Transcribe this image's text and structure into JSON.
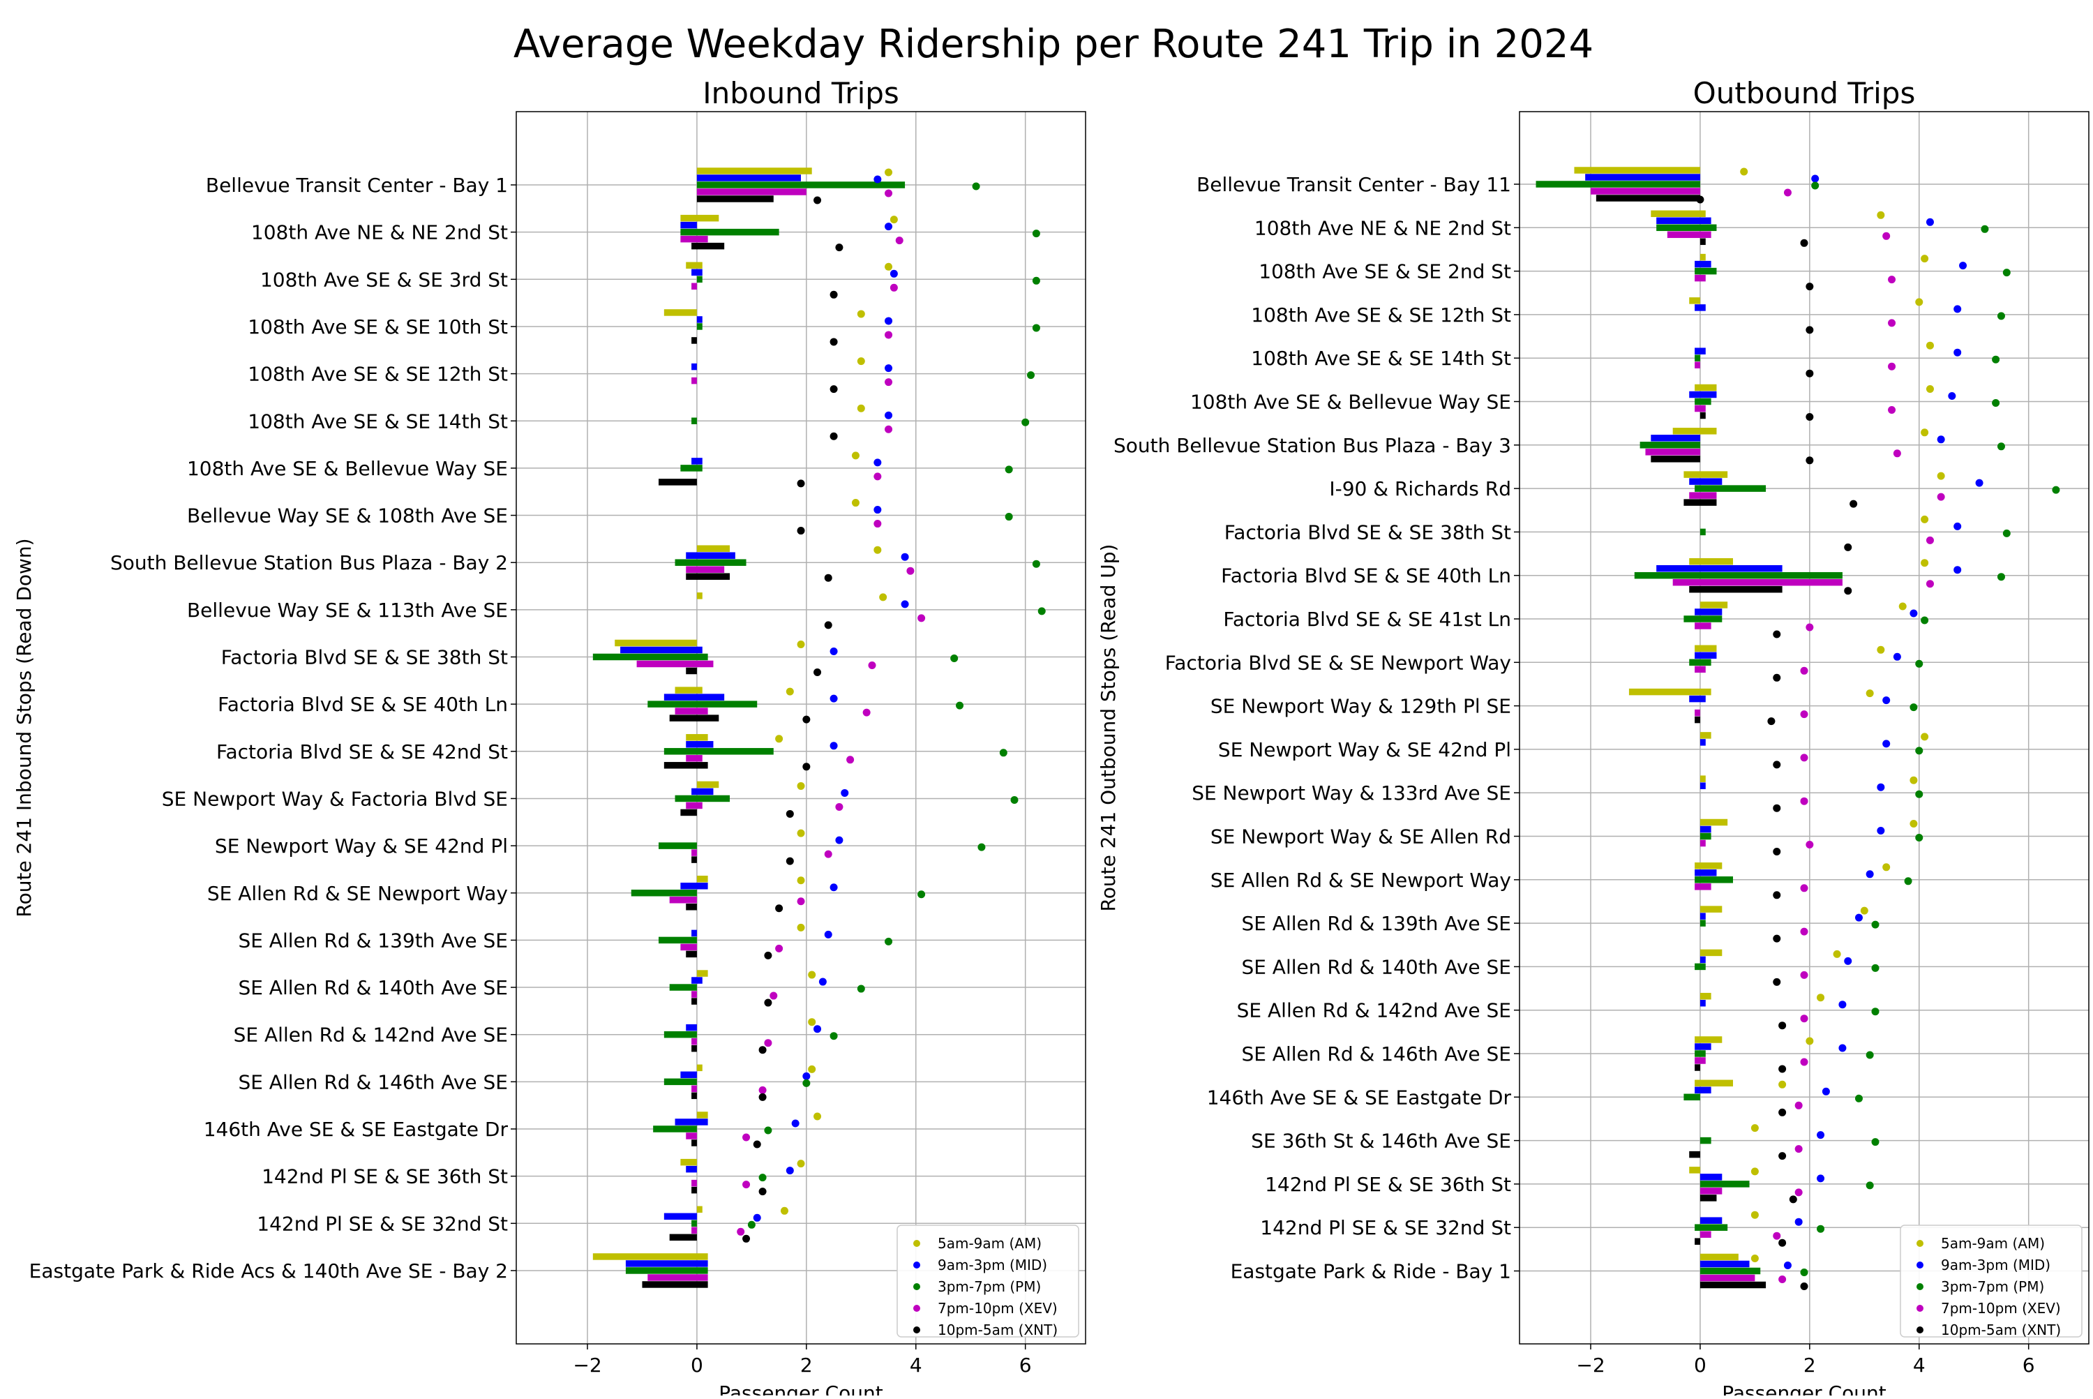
{
  "title": "Average Weekday Ridership per Route 241 Trip in 2024",
  "colors": {
    "AM": "#bfbf00",
    "MID": "#0000ff",
    "PM": "#008000",
    "XEV": "#bf00bf",
    "XNT": "#000000"
  },
  "chart_data": [
    {
      "type": "bar",
      "title": "Inbound Trips",
      "xlabel": "Passenger Count",
      "ylabel": "Route 241 Inbound Stops (Read Down)",
      "xlim": [
        -3.3,
        7.1
      ],
      "xticks": [
        -2,
        0,
        2,
        4,
        6
      ],
      "grid": true,
      "legend_position": "lower-right",
      "categories": [
        "Bellevue Transit Center - Bay 1",
        "108th Ave NE & NE 2nd St",
        "108th Ave SE & SE 3rd St",
        "108th Ave SE & SE 10th St",
        "108th Ave SE & SE 12th St",
        "108th Ave SE & SE 14th St",
        "108th Ave SE & Bellevue Way SE",
        "Bellevue Way SE & 108th Ave SE",
        "South Bellevue Station Bus Plaza - Bay 2",
        "Bellevue Way SE & 113th Ave SE",
        "Factoria Blvd SE & SE 38th St",
        "Factoria Blvd SE & SE 40th Ln",
        "Factoria Blvd SE & SE 42nd St",
        "SE Newport Way & Factoria Blvd SE",
        "SE Newport Way & SE 42nd Pl",
        "SE Allen Rd & SE Newport Way",
        "SE Allen Rd & 139th Ave SE",
        "SE Allen Rd & 140th Ave SE",
        "SE Allen Rd & 142nd Ave SE",
        "SE Allen Rd & 146th Ave SE",
        "146th Ave SE & SE Eastgate Dr",
        "142nd Pl SE & SE 36th St",
        "142nd Pl SE & SE 32nd St",
        "Eastgate Park & Ride Acs & 140th Ave SE - Bay 2"
      ],
      "series": [
        {
          "name": "5am-9am (AM)",
          "color": "#bfbf00",
          "bar_low": [
            0,
            -0.3,
            -0.2,
            -0.6,
            0,
            0,
            0,
            0,
            0,
            0,
            -1.5,
            -0.4,
            -0.2,
            0,
            0,
            0,
            0,
            0,
            0,
            0,
            0,
            -0.3,
            0,
            -1.9
          ],
          "bar_high": [
            2.1,
            0.4,
            0.1,
            0,
            0,
            0,
            0,
            0,
            0.6,
            0.1,
            0,
            0.1,
            0.2,
            0.4,
            0,
            0.2,
            0,
            0.2,
            0,
            0.1,
            0.2,
            0,
            0.1,
            0.2
          ],
          "dots": [
            3.5,
            3.6,
            3.5,
            3.0,
            3.0,
            3.0,
            2.9,
            2.9,
            3.3,
            3.4,
            1.9,
            1.7,
            1.5,
            1.9,
            1.9,
            1.9,
            1.9,
            2.1,
            2.1,
            2.1,
            2.2,
            1.9,
            1.6,
            null
          ]
        },
        {
          "name": "9am-3pm (MID)",
          "color": "#0000ff",
          "bar_low": [
            0,
            -0.3,
            -0.1,
            0,
            -0.1,
            0,
            -0.1,
            0,
            -0.2,
            0,
            -1.4,
            -0.6,
            -0.2,
            -0.1,
            0,
            -0.3,
            -0.1,
            -0.1,
            -0.2,
            -0.3,
            -0.4,
            -0.2,
            -0.6,
            -1.3
          ],
          "bar_high": [
            1.9,
            0,
            0.1,
            0.1,
            0,
            0,
            0.1,
            0,
            0.7,
            0,
            0.1,
            0.5,
            0.3,
            0.3,
            0,
            0.2,
            0,
            0.1,
            0,
            0,
            0.2,
            0,
            0,
            0.2
          ],
          "dots": [
            3.3,
            3.5,
            3.6,
            3.5,
            3.5,
            3.5,
            3.3,
            3.3,
            3.8,
            3.8,
            2.5,
            2.5,
            2.5,
            2.7,
            2.6,
            2.5,
            2.4,
            2.3,
            2.2,
            2.0,
            1.8,
            1.7,
            1.1,
            null
          ]
        },
        {
          "name": "3pm-7pm (PM)",
          "color": "#008000",
          "bar_low": [
            0,
            -0.3,
            0,
            0,
            0,
            -0.1,
            -0.3,
            0,
            -0.4,
            0,
            -1.9,
            -0.9,
            -0.6,
            -0.4,
            -0.7,
            -1.2,
            -0.7,
            -0.5,
            -0.6,
            -0.6,
            -0.8,
            0,
            -0.1,
            -1.3
          ],
          "bar_high": [
            3.8,
            1.5,
            0.1,
            0.1,
            0,
            0,
            0.1,
            0,
            0.9,
            0,
            0.2,
            1.1,
            1.4,
            0.6,
            0,
            0,
            0,
            0,
            0,
            0,
            0,
            0,
            0,
            0.2
          ],
          "dots": [
            5.1,
            6.2,
            6.2,
            6.2,
            6.1,
            6.0,
            5.7,
            5.7,
            6.2,
            6.3,
            4.7,
            4.8,
            5.6,
            5.8,
            5.2,
            4.1,
            3.5,
            3.0,
            2.5,
            2.0,
            1.3,
            1.2,
            1.0,
            null
          ]
        },
        {
          "name": "7pm-10pm (XEV)",
          "color": "#bf00bf",
          "bar_low": [
            0,
            -0.3,
            -0.1,
            0,
            -0.1,
            0,
            0,
            0,
            -0.2,
            0,
            -1.1,
            -0.4,
            -0.2,
            -0.2,
            -0.1,
            -0.5,
            -0.3,
            -0.1,
            -0.1,
            -0.1,
            -0.2,
            -0.1,
            -0.1,
            -0.9
          ],
          "bar_high": [
            2.0,
            0.2,
            0,
            0,
            0,
            0,
            0,
            0,
            0.5,
            0,
            0.3,
            0.2,
            0.1,
            0.1,
            0,
            0,
            0,
            0,
            0,
            0,
            0,
            0,
            0,
            0.2
          ],
          "dots": [
            3.5,
            3.7,
            3.6,
            3.5,
            3.5,
            3.5,
            3.3,
            3.3,
            3.9,
            4.1,
            3.2,
            3.1,
            2.8,
            2.6,
            2.4,
            1.9,
            1.5,
            1.4,
            1.3,
            1.2,
            0.9,
            0.9,
            0.8,
            null
          ]
        },
        {
          "name": "10pm-5am (XNT)",
          "color": "#000000",
          "bar_low": [
            0,
            -0.1,
            0,
            -0.1,
            0,
            0,
            -0.7,
            0,
            -0.2,
            0,
            -0.2,
            -0.5,
            -0.6,
            -0.3,
            -0.1,
            -0.2,
            -0.2,
            -0.1,
            -0.1,
            -0.1,
            -0.1,
            -0.1,
            -0.5,
            -1.0
          ],
          "bar_high": [
            1.4,
            0.5,
            0,
            0,
            0,
            0,
            0,
            0,
            0.6,
            0,
            0,
            0.4,
            0.2,
            0,
            0,
            0,
            0,
            0,
            0,
            0,
            0,
            0,
            0,
            0.2
          ],
          "dots": [
            2.2,
            2.6,
            2.5,
            2.5,
            2.5,
            2.5,
            1.9,
            1.9,
            2.4,
            2.4,
            2.2,
            2.0,
            2.0,
            1.7,
            1.7,
            1.5,
            1.3,
            1.3,
            1.2,
            1.2,
            1.1,
            1.2,
            0.9,
            null
          ]
        }
      ]
    },
    {
      "type": "bar",
      "title": "Outbound Trips",
      "xlabel": "Passenger Count",
      "ylabel": "Route 241 Outbound Stops (Read Up)",
      "xlim": [
        -3.3,
        7.1
      ],
      "xticks": [
        -2,
        0,
        2,
        4,
        6
      ],
      "grid": true,
      "legend_position": "lower-right",
      "categories": [
        "Bellevue Transit Center - Bay 11",
        "108th Ave NE & NE 2nd St",
        "108th Ave SE & SE 2nd St",
        "108th Ave SE & SE 12th St",
        "108th Ave SE & SE 14th St",
        "108th Ave SE & Bellevue Way SE",
        "South Bellevue Station Bus Plaza - Bay 3",
        "I-90 & Richards Rd",
        "Factoria Blvd SE & SE 38th St",
        "Factoria Blvd SE & SE 40th Ln",
        "Factoria Blvd SE & SE 41st Ln",
        "Factoria Blvd SE & SE Newport Way",
        "SE Newport Way & 129th Pl SE",
        "SE Newport Way & SE 42nd Pl",
        "SE Newport Way & 133rd Ave SE",
        "SE Newport Way & SE Allen Rd",
        "SE Allen Rd & SE Newport Way",
        "SE Allen Rd & 139th Ave SE",
        "SE Allen Rd & 140th Ave SE",
        "SE Allen Rd & 142nd Ave SE",
        "SE Allen Rd & 146th Ave SE",
        "146th Ave SE & SE Eastgate Dr",
        "SE 36th St & 146th Ave SE",
        "142nd Pl SE & SE 36th St",
        "142nd Pl SE & SE 32nd St",
        "Eastgate Park & Ride - Bay 1"
      ],
      "series": [
        {
          "name": "5am-9am (AM)",
          "color": "#bfbf00",
          "bar_low": [
            -2.3,
            -0.9,
            0,
            -0.2,
            0,
            -0.1,
            -0.5,
            -0.3,
            0,
            -0.2,
            0,
            -0.1,
            -1.3,
            0,
            0,
            0,
            -0.1,
            0,
            0,
            0,
            -0.1,
            -0.1,
            0,
            -0.2,
            0,
            0
          ],
          "bar_high": [
            0,
            0.1,
            0.1,
            0,
            0,
            0.3,
            0.3,
            0.5,
            0,
            0.6,
            0.5,
            0.3,
            0.2,
            0.2,
            0.1,
            0.5,
            0.4,
            0.4,
            0.4,
            0.2,
            0.4,
            0.6,
            0,
            0,
            0,
            0.7
          ],
          "dots": [
            0.8,
            3.3,
            4.1,
            4.0,
            4.2,
            4.2,
            4.1,
            4.4,
            4.1,
            4.1,
            3.7,
            3.3,
            3.1,
            4.1,
            3.9,
            3.9,
            3.4,
            3.0,
            2.5,
            2.2,
            2.0,
            1.5,
            1.0,
            1.0,
            1.0,
            1.0
          ]
        },
        {
          "name": "9am-3pm (MID)",
          "color": "#0000ff",
          "bar_low": [
            -2.1,
            -0.8,
            -0.1,
            -0.1,
            -0.1,
            -0.2,
            -0.9,
            -0.2,
            0,
            -0.8,
            -0.1,
            -0.1,
            -0.2,
            0,
            0,
            0,
            -0.1,
            0,
            0,
            0,
            -0.1,
            -0.1,
            0,
            0,
            0,
            0
          ],
          "bar_high": [
            0,
            0.2,
            0.2,
            0.1,
            0.1,
            0.3,
            0,
            0.4,
            0,
            1.5,
            0.4,
            0.3,
            0.1,
            0.1,
            0.1,
            0.2,
            0.3,
            0.1,
            0.1,
            0.1,
            0.2,
            0.2,
            0,
            0.4,
            0.4,
            0.9
          ],
          "dots": [
            2.1,
            4.2,
            4.8,
            4.7,
            4.7,
            4.6,
            4.4,
            5.1,
            4.7,
            4.7,
            3.9,
            3.6,
            3.4,
            3.4,
            3.3,
            3.3,
            3.1,
            2.9,
            2.7,
            2.6,
            2.6,
            2.3,
            2.2,
            2.2,
            1.8,
            1.6
          ]
        },
        {
          "name": "3pm-7pm (PM)",
          "color": "#008000",
          "bar_low": [
            -3.0,
            -0.8,
            -0.1,
            0,
            -0.1,
            -0.1,
            -1.1,
            -0.1,
            0,
            -1.2,
            -0.3,
            -0.2,
            0,
            0,
            0,
            0,
            -0.1,
            0,
            -0.1,
            0,
            -0.1,
            -0.3,
            0,
            0,
            -0.1,
            0
          ],
          "bar_high": [
            0,
            0.3,
            0.3,
            0,
            0,
            0.2,
            0,
            1.2,
            0.1,
            2.6,
            0.4,
            0.2,
            0,
            0,
            0,
            0.2,
            0.6,
            0.1,
            0.1,
            0,
            0.1,
            0,
            0.2,
            0.9,
            0.5,
            1.1
          ],
          "dots": [
            2.1,
            5.2,
            5.6,
            5.5,
            5.4,
            5.4,
            5.5,
            6.5,
            5.6,
            5.5,
            4.1,
            4.0,
            3.9,
            4.0,
            4.0,
            4.0,
            3.8,
            3.2,
            3.2,
            3.2,
            3.1,
            2.9,
            3.2,
            3.1,
            2.2,
            1.9
          ]
        },
        {
          "name": "7pm-10pm (XEV)",
          "color": "#bf00bf",
          "bar_low": [
            -2.0,
            -0.6,
            -0.1,
            0,
            -0.1,
            -0.1,
            -1.0,
            -0.2,
            0,
            -0.5,
            -0.1,
            -0.1,
            -0.1,
            0,
            0,
            0,
            -0.1,
            0,
            0,
            0,
            -0.1,
            0,
            0,
            0,
            0,
            0
          ],
          "bar_high": [
            0,
            0.2,
            0.1,
            0,
            0,
            0.1,
            0,
            0.3,
            0,
            2.6,
            0.2,
            0.1,
            0,
            0,
            0,
            0.1,
            0.2,
            0,
            0,
            0,
            0.1,
            0,
            0,
            0.4,
            0.2,
            1.0
          ],
          "dots": [
            1.6,
            3.4,
            3.5,
            3.5,
            3.5,
            3.5,
            3.6,
            4.4,
            4.2,
            4.2,
            2.0,
            1.9,
            1.9,
            1.9,
            1.9,
            2.0,
            1.9,
            1.9,
            1.9,
            1.9,
            1.9,
            1.8,
            1.8,
            1.8,
            1.4,
            1.5
          ]
        },
        {
          "name": "10pm-5am (XNT)",
          "color": "#000000",
          "bar_low": [
            -1.9,
            0,
            0,
            0,
            0,
            0,
            -0.9,
            -0.3,
            0,
            -0.2,
            0,
            0,
            -0.1,
            0,
            0,
            0,
            0,
            0,
            0,
            0,
            -0.1,
            0,
            -0.2,
            0,
            -0.1,
            0
          ],
          "bar_high": [
            0,
            0.1,
            0,
            0,
            0,
            0.1,
            0,
            0.3,
            0,
            1.5,
            0,
            0,
            0,
            0,
            0,
            0,
            0,
            0,
            0,
            0,
            0,
            0,
            0,
            0.3,
            0,
            1.2
          ],
          "dots": [
            0,
            1.9,
            2.0,
            2.0,
            2.0,
            2.0,
            2.0,
            2.8,
            2.7,
            2.7,
            1.4,
            1.4,
            1.3,
            1.4,
            1.4,
            1.4,
            1.4,
            1.4,
            1.4,
            1.5,
            1.5,
            1.5,
            1.5,
            1.7,
            1.5,
            1.9
          ]
        }
      ]
    }
  ]
}
